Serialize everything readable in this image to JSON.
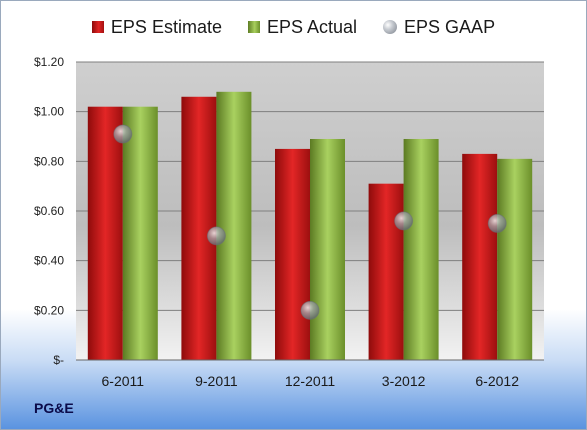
{
  "company": "PG&E",
  "legend": {
    "estimate": "EPS Estimate",
    "actual": "EPS Actual",
    "gaap": "EPS GAAP"
  },
  "colors": {
    "estimate": "#d01818",
    "actual": "#8db446",
    "gaap": "#9aa0a8"
  },
  "chart_data": {
    "type": "bar",
    "categories": [
      "6-2011",
      "9-2011",
      "12-2011",
      "3-2012",
      "6-2012"
    ],
    "series": [
      {
        "name": "EPS Estimate",
        "values": [
          1.02,
          1.06,
          0.85,
          0.71,
          0.83
        ]
      },
      {
        "name": "EPS Actual",
        "values": [
          1.02,
          1.08,
          0.89,
          0.89,
          0.81
        ]
      },
      {
        "name": "EPS GAAP",
        "type": "scatter",
        "values": [
          0.91,
          0.5,
          0.2,
          0.56,
          0.55
        ]
      }
    ],
    "ylim": [
      0,
      1.2
    ],
    "yticks": [
      0,
      0.2,
      0.4,
      0.6,
      0.8,
      1.0,
      1.2
    ],
    "ytick_labels": [
      "$-",
      "$0.20",
      "$0.40",
      "$0.60",
      "$0.80",
      "$1.00",
      "$1.20"
    ],
    "grid": true,
    "legend_position": "top"
  }
}
